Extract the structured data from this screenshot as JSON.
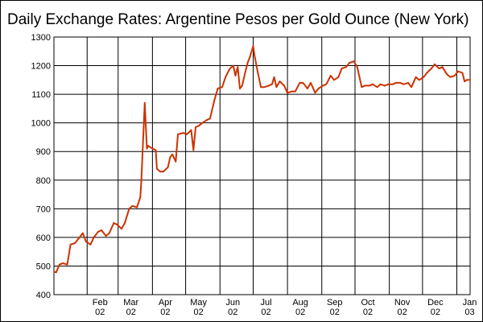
{
  "chart_data": {
    "type": "line",
    "title": "Daily Exchange Rates: Argentine Pesos per Gold Ounce (New York)",
    "xlabel": "",
    "ylabel": "",
    "ylim": [
      400,
      1300
    ],
    "y_ticks": [
      400,
      500,
      600,
      700,
      800,
      900,
      1000,
      1100,
      1200,
      1300
    ],
    "x_range": [
      "2002-01-02",
      "2003-01-13"
    ],
    "x_ticks": [
      {
        "date": "2002-02-01",
        "month": "Feb",
        "year": "02"
      },
      {
        "date": "2002-03-01",
        "month": "Mar",
        "year": "02"
      },
      {
        "date": "2002-04-01",
        "month": "Apr",
        "year": "02"
      },
      {
        "date": "2002-05-01",
        "month": "May",
        "year": "02"
      },
      {
        "date": "2002-06-01",
        "month": "Jun",
        "year": "02"
      },
      {
        "date": "2002-07-01",
        "month": "Jul",
        "year": "02"
      },
      {
        "date": "2002-08-01",
        "month": "Aug",
        "year": "02"
      },
      {
        "date": "2002-09-01",
        "month": "Sep",
        "year": "02"
      },
      {
        "date": "2002-10-01",
        "month": "Oct",
        "year": "02"
      },
      {
        "date": "2002-11-01",
        "month": "Nov",
        "year": "02"
      },
      {
        "date": "2002-12-01",
        "month": "Dec",
        "year": "02"
      },
      {
        "date": "2003-01-01",
        "month": "Jan",
        "year": "03"
      }
    ],
    "grid": true,
    "legend": "none",
    "series": [
      {
        "color": "#cc3300",
        "points": [
          [
            "2002-01-02",
            480
          ],
          [
            "2002-01-04",
            478
          ],
          [
            "2002-01-07",
            505
          ],
          [
            "2002-01-10",
            510
          ],
          [
            "2002-01-14",
            505
          ],
          [
            "2002-01-17",
            575
          ],
          [
            "2002-01-21",
            580
          ],
          [
            "2002-01-24",
            595
          ],
          [
            "2002-01-28",
            615
          ],
          [
            "2002-01-31",
            585
          ],
          [
            "2002-02-04",
            575
          ],
          [
            "2002-02-07",
            600
          ],
          [
            "2002-02-11",
            620
          ],
          [
            "2002-02-14",
            625
          ],
          [
            "2002-02-18",
            605
          ],
          [
            "2002-02-21",
            615
          ],
          [
            "2002-02-25",
            650
          ],
          [
            "2002-02-28",
            645
          ],
          [
            "2002-03-04",
            630
          ],
          [
            "2002-03-07",
            650
          ],
          [
            "2002-03-11",
            700
          ],
          [
            "2002-03-14",
            710
          ],
          [
            "2002-03-18",
            705
          ],
          [
            "2002-03-21",
            740
          ],
          [
            "2002-03-22",
            800
          ],
          [
            "2002-03-25",
            1070
          ],
          [
            "2002-03-27",
            910
          ],
          [
            "2002-03-28",
            920
          ],
          [
            "2002-04-01",
            910
          ],
          [
            "2002-04-04",
            905
          ],
          [
            "2002-04-05",
            840
          ],
          [
            "2002-04-08",
            830
          ],
          [
            "2002-04-11",
            830
          ],
          [
            "2002-04-15",
            845
          ],
          [
            "2002-04-17",
            880
          ],
          [
            "2002-04-19",
            890
          ],
          [
            "2002-04-22",
            865
          ],
          [
            "2002-04-24",
            960
          ],
          [
            "2002-04-29",
            965
          ],
          [
            "2002-05-02",
            960
          ],
          [
            "2002-05-06",
            975
          ],
          [
            "2002-05-08",
            905
          ],
          [
            "2002-05-10",
            985
          ],
          [
            "2002-05-13",
            990
          ],
          [
            "2002-05-16",
            1000
          ],
          [
            "2002-05-20",
            1010
          ],
          [
            "2002-05-23",
            1015
          ],
          [
            "2002-05-27",
            1080
          ],
          [
            "2002-05-30",
            1120
          ],
          [
            "2002-06-03",
            1125
          ],
          [
            "2002-06-06",
            1160
          ],
          [
            "2002-06-10",
            1190
          ],
          [
            "2002-06-13",
            1200
          ],
          [
            "2002-06-15",
            1165
          ],
          [
            "2002-06-17",
            1195
          ],
          [
            "2002-06-19",
            1120
          ],
          [
            "2002-06-21",
            1130
          ],
          [
            "2002-06-24",
            1180
          ],
          [
            "2002-06-26",
            1210
          ],
          [
            "2002-06-28",
            1230
          ],
          [
            "2002-07-01",
            1268
          ],
          [
            "2002-07-02",
            1240
          ],
          [
            "2002-07-05",
            1180
          ],
          [
            "2002-07-08",
            1125
          ],
          [
            "2002-07-11",
            1125
          ],
          [
            "2002-07-15",
            1130
          ],
          [
            "2002-07-18",
            1135
          ],
          [
            "2002-07-20",
            1160
          ],
          [
            "2002-07-22",
            1125
          ],
          [
            "2002-07-25",
            1145
          ],
          [
            "2002-07-29",
            1130
          ],
          [
            "2002-08-01",
            1105
          ],
          [
            "2002-08-05",
            1110
          ],
          [
            "2002-08-08",
            1110
          ],
          [
            "2002-08-12",
            1140
          ],
          [
            "2002-08-15",
            1140
          ],
          [
            "2002-08-19",
            1120
          ],
          [
            "2002-08-22",
            1140
          ],
          [
            "2002-08-26",
            1105
          ],
          [
            "2002-08-29",
            1120
          ],
          [
            "2002-09-02",
            1130
          ],
          [
            "2002-09-05",
            1135
          ],
          [
            "2002-09-09",
            1165
          ],
          [
            "2002-09-12",
            1150
          ],
          [
            "2002-09-16",
            1160
          ],
          [
            "2002-09-19",
            1190
          ],
          [
            "2002-09-23",
            1195
          ],
          [
            "2002-09-26",
            1210
          ],
          [
            "2002-09-30",
            1215
          ],
          [
            "2002-10-03",
            1195
          ],
          [
            "2002-10-07",
            1125
          ],
          [
            "2002-10-10",
            1130
          ],
          [
            "2002-10-14",
            1130
          ],
          [
            "2002-10-17",
            1135
          ],
          [
            "2002-10-21",
            1125
          ],
          [
            "2002-10-24",
            1135
          ],
          [
            "2002-10-28",
            1130
          ],
          [
            "2002-10-31",
            1135
          ],
          [
            "2002-11-04",
            1135
          ],
          [
            "2002-11-07",
            1140
          ],
          [
            "2002-11-11",
            1140
          ],
          [
            "2002-11-14",
            1135
          ],
          [
            "2002-11-18",
            1140
          ],
          [
            "2002-11-21",
            1125
          ],
          [
            "2002-11-25",
            1160
          ],
          [
            "2002-11-28",
            1150
          ],
          [
            "2002-12-02",
            1160
          ],
          [
            "2002-12-05",
            1175
          ],
          [
            "2002-12-09",
            1190
          ],
          [
            "2002-12-12",
            1205
          ],
          [
            "2002-12-16",
            1190
          ],
          [
            "2002-12-19",
            1195
          ],
          [
            "2002-12-23",
            1170
          ],
          [
            "2002-12-26",
            1160
          ],
          [
            "2002-12-30",
            1165
          ],
          [
            "2003-01-02",
            1180
          ],
          [
            "2003-01-06",
            1175
          ],
          [
            "2003-01-08",
            1145
          ],
          [
            "2003-01-10",
            1150
          ],
          [
            "2003-01-13",
            1150
          ]
        ]
      }
    ]
  }
}
